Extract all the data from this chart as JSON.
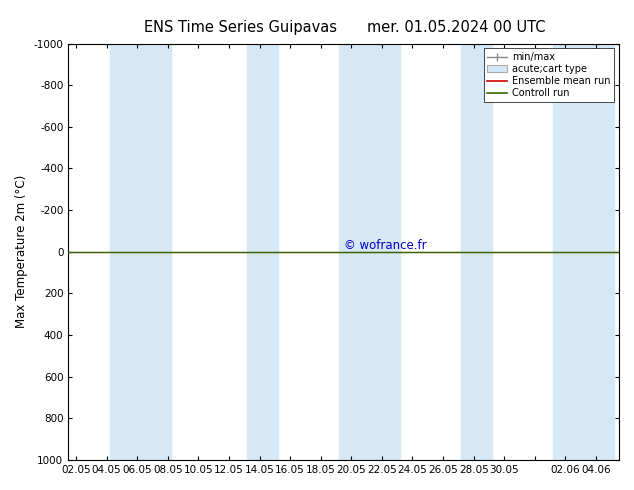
{
  "title_left": "ENS Time Series Guipavas",
  "title_right": "mer. 01.05.2024 00 UTC",
  "ylabel": "Max Temperature 2m (°C)",
  "ylim": [
    -1000,
    1000
  ],
  "yticks": [
    -1000,
    -800,
    -600,
    -400,
    -200,
    0,
    200,
    400,
    600,
    800,
    1000
  ],
  "background_color": "#ffffff",
  "plot_bg_color": "#ffffff",
  "band_color": "#d6e8f5",
  "band_pairs": [
    [
      3,
      5
    ],
    [
      5,
      7
    ],
    [
      11,
      13
    ],
    [
      17,
      19
    ],
    [
      19,
      21
    ],
    [
      25,
      27
    ],
    [
      31,
      33
    ],
    [
      32,
      34
    ]
  ],
  "green_line_color": "#336600",
  "red_line_color": "#cc0000",
  "copyright_text": "© wofrance.fr",
  "copyright_color": "#0000cc",
  "x_tick_positions": [
    0,
    2,
    4,
    6,
    8,
    10,
    12,
    14,
    16,
    18,
    20,
    22,
    24,
    26,
    28,
    30,
    32,
    34
  ],
  "x_tick_labels": [
    "02.05",
    "04.05",
    "06.05",
    "08.05",
    "10.05",
    "12.05",
    "14.05",
    "16.05",
    "18.05",
    "20.05",
    "22.05",
    "24.05",
    "26.05",
    "28.05",
    "30.05",
    "",
    "02.06",
    "04.06"
  ],
  "xlim": [
    -0.5,
    35.5
  ]
}
